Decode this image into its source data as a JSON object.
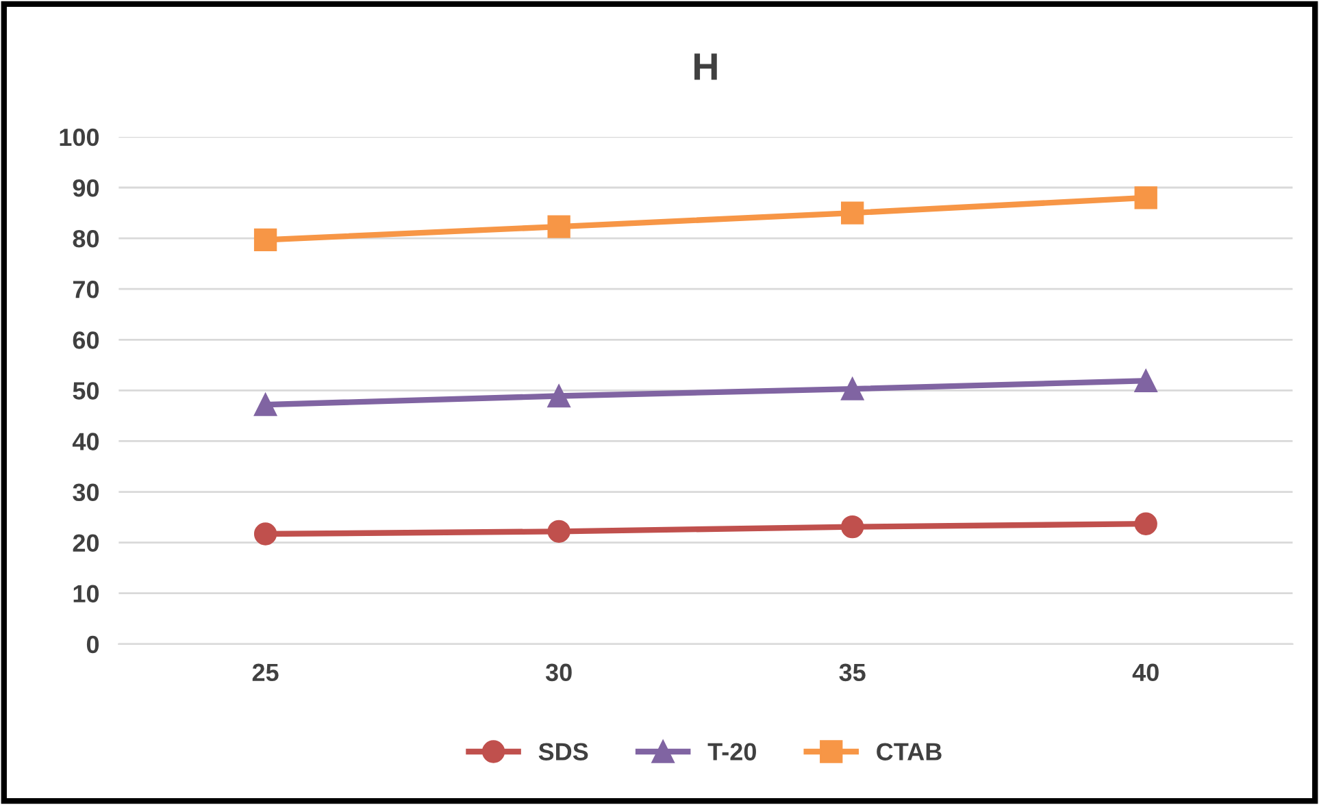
{
  "chart_data": {
    "type": "line",
    "title": "H",
    "categories": [
      "25",
      "30",
      "35",
      "40"
    ],
    "series": [
      {
        "name": "SDS",
        "color": "#c0504d",
        "marker": "circle",
        "values": [
          21.7,
          22.2,
          23.1,
          23.7
        ]
      },
      {
        "name": "T-20",
        "color": "#8064a2",
        "marker": "triangle",
        "values": [
          47.2,
          48.9,
          50.3,
          51.9
        ]
      },
      {
        "name": "CTAB",
        "color": "#f79646",
        "marker": "square",
        "values": [
          79.7,
          82.3,
          85.0,
          88.0
        ]
      }
    ],
    "ylim": [
      0,
      100
    ],
    "yticks": [
      0,
      10,
      20,
      30,
      40,
      50,
      60,
      70,
      80,
      90,
      100
    ],
    "grid": "y",
    "legend": "bottom",
    "line_style": "solid"
  }
}
